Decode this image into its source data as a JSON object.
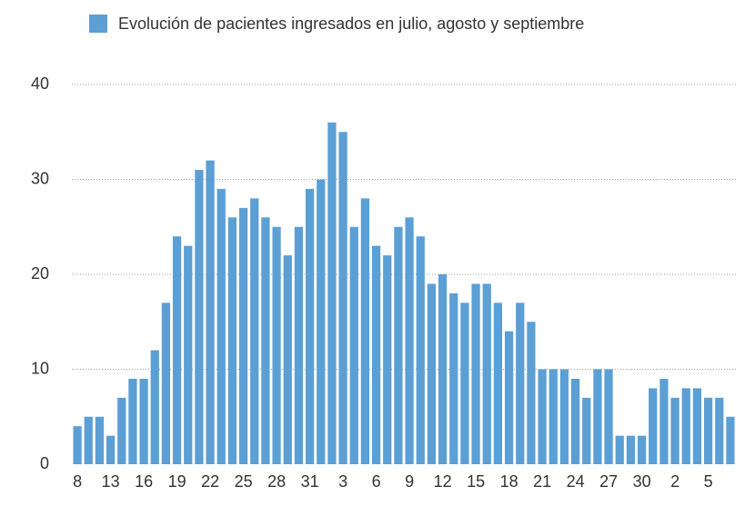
{
  "chart_data": {
    "type": "bar",
    "categories": [
      "8",
      null,
      null,
      "13",
      null,
      null,
      "16",
      null,
      null,
      "19",
      null,
      null,
      "22",
      null,
      null,
      "25",
      null,
      null,
      "28",
      null,
      null,
      "31",
      null,
      null,
      "3",
      null,
      null,
      "6",
      null,
      null,
      "9",
      null,
      null,
      "12",
      null,
      null,
      "15",
      null,
      null,
      "18",
      null,
      null,
      "21",
      null,
      null,
      "24",
      null,
      null,
      "27",
      null,
      null,
      "30",
      null,
      null,
      "2",
      null,
      null,
      "5",
      null,
      null
    ],
    "series": [
      {
        "name": "Evolución de pacientes ingresados en julio, agosto y septiembre",
        "color": "#5b9fd5",
        "values": [
          4,
          5,
          5,
          3,
          7,
          9,
          9,
          12,
          17,
          24,
          23,
          31,
          32,
          29,
          26,
          27,
          28,
          26,
          25,
          22,
          25,
          29,
          30,
          36,
          35,
          25,
          28,
          23,
          22,
          25,
          26,
          24,
          19,
          20,
          18,
          17,
          19,
          19,
          17,
          14,
          17,
          15,
          10,
          10,
          10,
          9,
          7,
          10,
          10,
          3,
          3,
          3,
          8,
          9,
          7,
          8,
          8,
          7,
          7,
          5
        ]
      }
    ],
    "ylim": [
      0,
      40
    ],
    "yticks": [
      0,
      10,
      20,
      30,
      40
    ],
    "grid": true,
    "legend": "top"
  }
}
